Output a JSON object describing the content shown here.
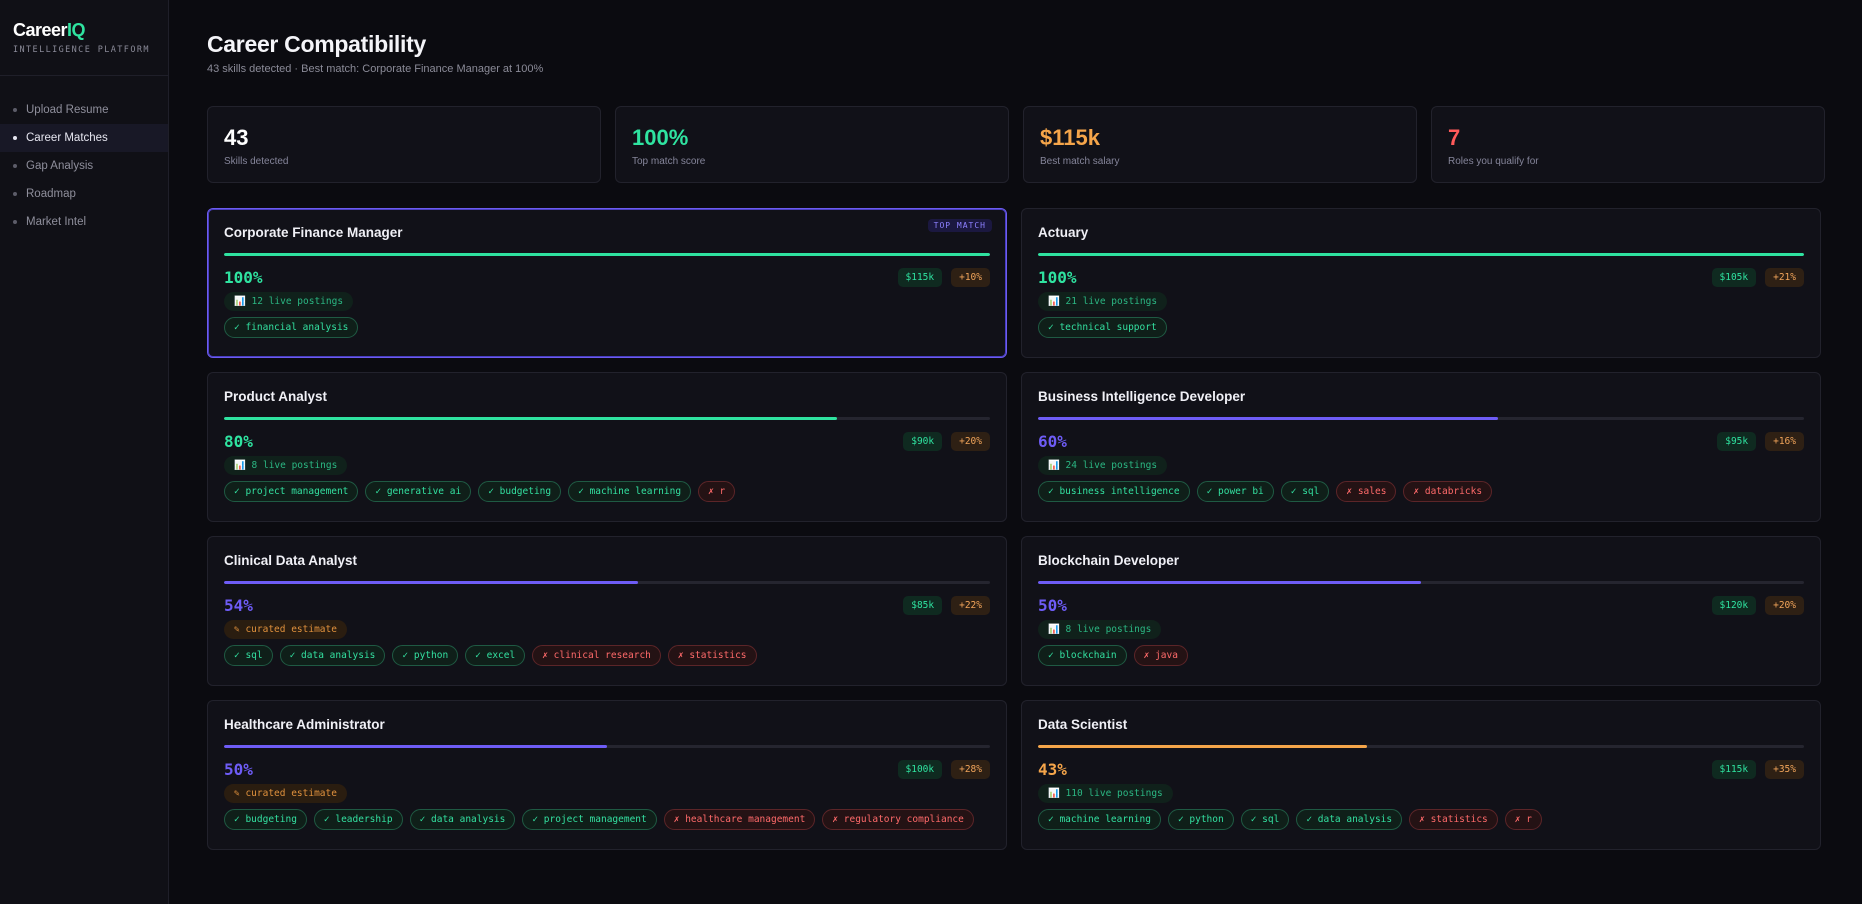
{
  "brand": {
    "name_main": "Career",
    "name_accent": "IQ",
    "tagline": "INTELLIGENCE PLATFORM"
  },
  "nav": [
    {
      "label": "Upload Resume",
      "active": false
    },
    {
      "label": "Career Matches",
      "active": true
    },
    {
      "label": "Gap Analysis",
      "active": false
    },
    {
      "label": "Roadmap",
      "active": false
    },
    {
      "label": "Market Intel",
      "active": false
    }
  ],
  "header": {
    "title": "Career Compatibility",
    "subtitle": "43 skills detected · Best match: Corporate Finance Manager at 100%"
  },
  "stats": [
    {
      "value": "43",
      "label": "Skills detected",
      "color": "#ffffff"
    },
    {
      "value": "100%",
      "label": "Top match score",
      "color": "#2fe3a0"
    },
    {
      "value": "$115k",
      "label": "Best match salary",
      "color": "#f5a54a"
    },
    {
      "value": "7",
      "label": "Roles you qualify for",
      "color": "#ff5a5a"
    }
  ],
  "top_badge": "TOP MATCH",
  "colors": {
    "green": "#2fe3a0",
    "purple": "#6e5cf6",
    "orange": "#f5a54a"
  },
  "matches": [
    {
      "title": "Corporate Finance Manager",
      "score": "100%",
      "score_value": 100,
      "color": "green",
      "salary": "$115k",
      "growth": "+10%",
      "postings": "📊 12 live postings",
      "postings_type": "live",
      "top": true,
      "skills": [
        {
          "name": "✓ financial analysis",
          "have": true
        }
      ]
    },
    {
      "title": "Actuary",
      "score": "100%",
      "score_value": 100,
      "color": "green",
      "salary": "$105k",
      "growth": "+21%",
      "postings": "📊 21 live postings",
      "postings_type": "live",
      "top": false,
      "skills": [
        {
          "name": "✓ technical support",
          "have": true
        }
      ]
    },
    {
      "title": "Product Analyst",
      "score": "80%",
      "score_value": 80,
      "color": "green",
      "salary": "$90k",
      "growth": "+20%",
      "postings": "📊 8 live postings",
      "postings_type": "live",
      "top": false,
      "skills": [
        {
          "name": "✓ project management",
          "have": true
        },
        {
          "name": "✓ generative ai",
          "have": true
        },
        {
          "name": "✓ budgeting",
          "have": true
        },
        {
          "name": "✓ machine learning",
          "have": true
        },
        {
          "name": "✗ r",
          "have": false
        }
      ]
    },
    {
      "title": "Business Intelligence Developer",
      "score": "60%",
      "score_value": 60,
      "color": "purple",
      "salary": "$95k",
      "growth": "+16%",
      "postings": "📊 24 live postings",
      "postings_type": "live",
      "top": false,
      "skills": [
        {
          "name": "✓ business intelligence",
          "have": true
        },
        {
          "name": "✓ power bi",
          "have": true
        },
        {
          "name": "✓ sql",
          "have": true
        },
        {
          "name": "✗ sales",
          "have": false
        },
        {
          "name": "✗ databricks",
          "have": false
        }
      ]
    },
    {
      "title": "Clinical Data Analyst",
      "score": "54%",
      "score_value": 54,
      "color": "purple",
      "salary": "$85k",
      "growth": "+22%",
      "postings": "✎ curated estimate",
      "postings_type": "est",
      "top": false,
      "skills": [
        {
          "name": "✓ sql",
          "have": true
        },
        {
          "name": "✓ data analysis",
          "have": true
        },
        {
          "name": "✓ python",
          "have": true
        },
        {
          "name": "✓ excel",
          "have": true
        },
        {
          "name": "✗ clinical research",
          "have": false
        },
        {
          "name": "✗ statistics",
          "have": false
        }
      ]
    },
    {
      "title": "Blockchain Developer",
      "score": "50%",
      "score_value": 50,
      "color": "purple",
      "salary": "$120k",
      "growth": "+20%",
      "postings": "📊 8 live postings",
      "postings_type": "live",
      "top": false,
      "skills": [
        {
          "name": "✓ blockchain",
          "have": true
        },
        {
          "name": "✗ java",
          "have": false
        }
      ]
    },
    {
      "title": "Healthcare Administrator",
      "score": "50%",
      "score_value": 50,
      "color": "purple",
      "salary": "$100k",
      "growth": "+28%",
      "postings": "✎ curated estimate",
      "postings_type": "est",
      "top": false,
      "skills": [
        {
          "name": "✓ budgeting",
          "have": true
        },
        {
          "name": "✓ leadership",
          "have": true
        },
        {
          "name": "✓ data analysis",
          "have": true
        },
        {
          "name": "✓ project management",
          "have": true
        },
        {
          "name": "✗ healthcare management",
          "have": false
        },
        {
          "name": "✗ regulatory compliance",
          "have": false
        }
      ]
    },
    {
      "title": "Data Scientist",
      "score": "43%",
      "score_value": 43,
      "color": "orange",
      "salary": "$115k",
      "growth": "+35%",
      "postings": "📊 110 live postings",
      "postings_type": "live",
      "top": false,
      "skills": [
        {
          "name": "✓ machine learning",
          "have": true
        },
        {
          "name": "✓ python",
          "have": true
        },
        {
          "name": "✓ sql",
          "have": true
        },
        {
          "name": "✓ data analysis",
          "have": true
        },
        {
          "name": "✗ statistics",
          "have": false
        },
        {
          "name": "✗ r",
          "have": false
        }
      ]
    }
  ]
}
